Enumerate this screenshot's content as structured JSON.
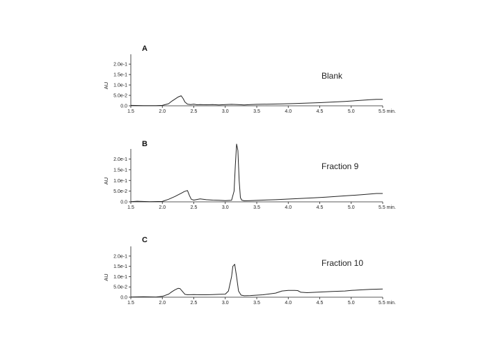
{
  "axis_color": "#222222",
  "trace_color": "#222222",
  "chart_data": [
    {
      "type": "line",
      "panel_label": "A",
      "annotation": "Blank",
      "ylabel": "AU",
      "x_ticks": [
        "1.5",
        "2.0",
        "2.5",
        "3.0",
        "3.5",
        "4.0",
        "4.5",
        "5.0",
        "5.5 min."
      ],
      "y_ticks": [
        "0.0",
        "5.0e-2",
        "1.0e-1",
        "1.5e-1",
        "2.0e-1"
      ],
      "xlim": [
        1.5,
        5.5
      ],
      "ylim": [
        0,
        0.22
      ],
      "series": [
        {
          "x": [
            1.5,
            1.7,
            1.9,
            2.0,
            2.1,
            2.15,
            2.2,
            2.25,
            2.3,
            2.33,
            2.36,
            2.4,
            2.45,
            2.5,
            2.55,
            2.6,
            2.7,
            2.8,
            2.9,
            3.0,
            3.1,
            3.2,
            3.3,
            3.4,
            3.5,
            3.7,
            3.9,
            4.1,
            4.3,
            4.5,
            4.7,
            4.9,
            5.0,
            5.1,
            5.2,
            5.3,
            5.4,
            5.5
          ],
          "y": [
            0.002,
            0.001,
            0.001,
            0.002,
            0.01,
            0.022,
            0.032,
            0.042,
            0.048,
            0.035,
            0.018,
            0.008,
            0.006,
            0.008,
            0.005,
            0.006,
            0.005,
            0.006,
            0.004,
            0.006,
            0.007,
            0.006,
            0.004,
            0.006,
            0.007,
            0.008,
            0.009,
            0.011,
            0.013,
            0.015,
            0.018,
            0.021,
            0.023,
            0.025,
            0.027,
            0.029,
            0.031,
            0.031
          ]
        }
      ]
    },
    {
      "type": "line",
      "panel_label": "B",
      "annotation": "Fraction 9",
      "ylabel": "AU",
      "x_ticks": [
        "1.5",
        "2.0",
        "2.5",
        "3.0",
        "3.5",
        "4.0",
        "4.5",
        "5.0",
        "5.5 min."
      ],
      "y_ticks": [
        "0.0",
        "5.0e-2",
        "1.0e-1",
        "1.5e-1",
        "2.0e-1"
      ],
      "xlim": [
        1.5,
        5.5
      ],
      "ylim": [
        0,
        0.22
      ],
      "series": [
        {
          "x": [
            1.5,
            1.6,
            1.8,
            2.0,
            2.1,
            2.2,
            2.3,
            2.35,
            2.4,
            2.43,
            2.46,
            2.5,
            2.6,
            2.7,
            2.8,
            2.9,
            3.0,
            3.1,
            3.14,
            3.16,
            3.18,
            3.2,
            3.22,
            3.24,
            3.26,
            3.3,
            3.4,
            3.6,
            3.8,
            4.0,
            4.2,
            4.4,
            4.6,
            4.8,
            5.0,
            5.2,
            5.4,
            5.5
          ],
          "y": [
            0.001,
            0.003,
            0.001,
            0.002,
            0.012,
            0.025,
            0.04,
            0.048,
            0.053,
            0.03,
            0.012,
            0.008,
            0.014,
            0.01,
            0.008,
            0.007,
            0.006,
            0.007,
            0.05,
            0.17,
            0.27,
            0.24,
            0.1,
            0.02,
            0.008,
            0.005,
            0.006,
            0.008,
            0.01,
            0.013,
            0.016,
            0.019,
            0.022,
            0.026,
            0.03,
            0.034,
            0.039,
            0.039
          ]
        }
      ]
    },
    {
      "type": "line",
      "panel_label": "C",
      "annotation": "Fraction 10",
      "ylabel": "AU",
      "x_ticks": [
        "1.5",
        "2.0",
        "2.5",
        "3.0",
        "3.5",
        "4.0",
        "4.5",
        "5.0",
        "5.5 min."
      ],
      "y_ticks": [
        "0.0",
        "5.0e-2",
        "1.0e-1",
        "1.5e-1",
        "2.0e-1"
      ],
      "xlim": [
        1.5,
        5.5
      ],
      "ylim": [
        0,
        0.22
      ],
      "series": [
        {
          "x": [
            1.5,
            1.7,
            1.9,
            2.0,
            2.1,
            2.15,
            2.2,
            2.25,
            2.28,
            2.32,
            2.36,
            2.4,
            2.5,
            2.6,
            2.7,
            2.8,
            2.9,
            3.0,
            3.05,
            3.1,
            3.12,
            3.15,
            3.18,
            3.21,
            3.25,
            3.3,
            3.4,
            3.6,
            3.8,
            3.9,
            4.0,
            4.1,
            4.15,
            4.2,
            4.3,
            4.5,
            4.7,
            4.9,
            5.0,
            5.1,
            5.3,
            5.5
          ],
          "y": [
            0.001,
            0.002,
            0.001,
            0.004,
            0.015,
            0.026,
            0.036,
            0.043,
            0.042,
            0.028,
            0.014,
            0.012,
            0.013,
            0.012,
            0.012,
            0.013,
            0.014,
            0.015,
            0.03,
            0.1,
            0.15,
            0.16,
            0.1,
            0.03,
            0.01,
            0.007,
            0.008,
            0.012,
            0.02,
            0.03,
            0.033,
            0.033,
            0.032,
            0.024,
            0.022,
            0.025,
            0.028,
            0.03,
            0.033,
            0.035,
            0.038,
            0.04
          ]
        }
      ]
    }
  ]
}
